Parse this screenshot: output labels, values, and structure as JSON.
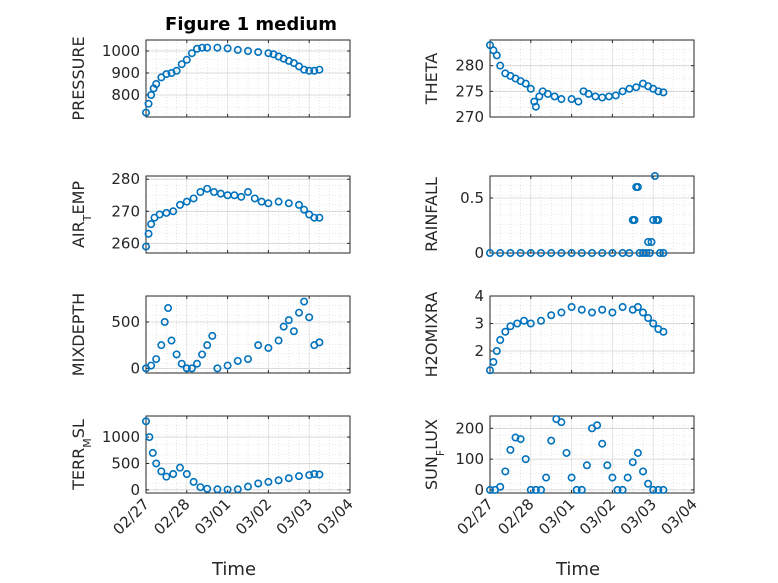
{
  "figure_title": "Figure 1 medium",
  "x_tick_labels": [
    "02/27",
    "02/28",
    "03/01",
    "03/02",
    "03/03",
    "03/04"
  ],
  "x_label": "Time",
  "marker_color": "#0072BD",
  "chart_data": [
    {
      "type": "scatter",
      "ylabel": "PRESSURE",
      "ylim": [
        700,
        1050
      ],
      "yticks": [
        800,
        900,
        1000
      ],
      "ytick_labels": [
        "800",
        "900",
        "1000"
      ],
      "x": [
        "02/27 00:00",
        "02/27 01:30",
        "02/27 03:00",
        "02/27 04:30",
        "02/27 06:00",
        "02/27 09:00",
        "02/27 12:00",
        "02/27 15:00",
        "02/27 18:00",
        "02/27 21:00",
        "02/28 00:00",
        "02/28 03:00",
        "02/28 06:00",
        "02/28 09:00",
        "02/28 12:00",
        "02/28 18:00",
        "03/01 00:00",
        "03/01 06:00",
        "03/01 12:00",
        "03/01 18:00",
        "03/02 00:00",
        "03/02 03:00",
        "03/02 06:00",
        "03/02 09:00",
        "03/02 12:00",
        "03/02 15:00",
        "03/02 18:00",
        "03/02 21:00",
        "03/03 00:00",
        "03/03 03:00",
        "03/03 06:00"
      ],
      "y": [
        720,
        760,
        800,
        830,
        850,
        880,
        895,
        900,
        910,
        940,
        960,
        990,
        1010,
        1015,
        1015,
        1015,
        1012,
        1005,
        1000,
        995,
        990,
        985,
        975,
        965,
        955,
        945,
        930,
        915,
        910,
        910,
        915
      ]
    },
    {
      "type": "scatter",
      "ylabel": "THETA",
      "ylim": [
        270,
        285
      ],
      "yticks": [
        270,
        275,
        280
      ],
      "ytick_labels": [
        "270",
        "275",
        "280"
      ],
      "x": [
        "02/27 00:00",
        "02/27 02:00",
        "02/27 04:00",
        "02/27 06:00",
        "02/27 09:00",
        "02/27 12:00",
        "02/27 15:00",
        "02/27 18:00",
        "02/27 21:00",
        "02/28 00:00",
        "02/28 02:00",
        "02/28 03:00",
        "02/28 05:00",
        "02/28 07:00",
        "02/28 10:00",
        "02/28 14:00",
        "02/28 18:00",
        "03/01 00:00",
        "03/01 04:00",
        "03/01 07:00",
        "03/01 10:00",
        "03/01 14:00",
        "03/01 18:00",
        "03/01 22:00",
        "03/02 02:00",
        "03/02 06:00",
        "03/02 10:00",
        "03/02 14:00",
        "03/02 18:00",
        "03/02 21:00",
        "03/03 00:00",
        "03/03 03:00",
        "03/03 06:00"
      ],
      "y": [
        284,
        283,
        282,
        280,
        278.5,
        278,
        277.5,
        277,
        276.5,
        275.5,
        273,
        272,
        274,
        275,
        274.5,
        274,
        273.5,
        273.5,
        273,
        275,
        274.5,
        274,
        273.8,
        274,
        274.2,
        275,
        275.5,
        275.8,
        276.5,
        276,
        275.5,
        275,
        274.8
      ]
    },
    {
      "type": "scatter",
      "ylabel": "AIR_TEMP",
      "ylim": [
        257,
        281
      ],
      "yticks": [
        260,
        270,
        280
      ],
      "ytick_labels": [
        "260",
        "270",
        "280"
      ],
      "x": [
        "02/27 00:00",
        "02/27 01:30",
        "02/27 03:00",
        "02/27 05:00",
        "02/27 08:00",
        "02/27 12:00",
        "02/27 16:00",
        "02/27 20:00",
        "02/28 00:00",
        "02/28 04:00",
        "02/28 08:00",
        "02/28 12:00",
        "02/28 16:00",
        "02/28 20:00",
        "03/01 00:00",
        "03/01 04:00",
        "03/01 08:00",
        "03/01 12:00",
        "03/01 16:00",
        "03/01 20:00",
        "03/02 00:00",
        "03/02 06:00",
        "03/02 12:00",
        "03/02 18:00",
        "03/02 21:00",
        "03/03 00:00",
        "03/03 03:00",
        "03/03 06:00"
      ],
      "y": [
        259,
        263,
        266,
        268,
        269,
        269.5,
        270,
        272,
        273,
        274,
        276,
        277,
        276,
        275.5,
        275,
        275,
        274.5,
        276,
        274,
        273,
        272.5,
        273,
        272.5,
        272,
        270.5,
        269,
        268,
        268
      ]
    },
    {
      "type": "scatter",
      "ylabel": "RAINFALL",
      "ylim": [
        0,
        0.7
      ],
      "yticks": [
        0,
        0.5
      ],
      "ytick_labels": [
        "0",
        "0.5"
      ],
      "x": [
        "02/27 00:00",
        "02/27 06:00",
        "02/27 12:00",
        "02/27 18:00",
        "02/28 00:00",
        "02/28 06:00",
        "02/28 12:00",
        "02/28 18:00",
        "03/01 00:00",
        "03/01 06:00",
        "03/01 12:00",
        "03/01 18:00",
        "03/02 00:00",
        "03/02 06:00",
        "03/02 10:00",
        "03/02 12:00",
        "03/02 13:00",
        "03/02 14:00",
        "03/02 15:00",
        "03/02 16:00",
        "03/02 18:00",
        "03/02 20:00",
        "03/02 21:00",
        "03/02 22:00",
        "03/02 23:00",
        "03/03 00:00",
        "03/03 01:00",
        "03/03 02:00",
        "03/03 03:00",
        "03/03 04:00",
        "03/03 06:00"
      ],
      "y": [
        0,
        0,
        0,
        0,
        0,
        0,
        0,
        0,
        0,
        0,
        0,
        0,
        0,
        0,
        0,
        0.3,
        0.3,
        0.6,
        0.6,
        0,
        0,
        0,
        0.1,
        0,
        0.1,
        0.3,
        0.7,
        0.3,
        0.3,
        0,
        0
      ]
    },
    {
      "type": "scatter",
      "ylabel": "MIXDEPTH",
      "ylim": [
        -50,
        780
      ],
      "yticks": [
        0,
        500
      ],
      "ytick_labels": [
        "0",
        "500"
      ],
      "x": [
        "02/27 00:00",
        "02/27 03:00",
        "02/27 06:00",
        "02/27 09:00",
        "02/27 11:00",
        "02/27 13:00",
        "02/27 15:00",
        "02/27 18:00",
        "02/27 21:00",
        "02/28 00:00",
        "02/28 03:00",
        "02/28 06:00",
        "02/28 09:00",
        "02/28 12:00",
        "02/28 15:00",
        "02/28 18:00",
        "03/01 00:00",
        "03/01 06:00",
        "03/01 12:00",
        "03/01 18:00",
        "03/02 00:00",
        "03/02 06:00",
        "03/02 09:00",
        "03/02 12:00",
        "03/02 15:00",
        "03/02 18:00",
        "03/02 21:00",
        "03/03 00:00",
        "03/03 03:00",
        "03/03 06:00"
      ],
      "y": [
        0,
        30,
        100,
        250,
        500,
        650,
        300,
        150,
        50,
        0,
        0,
        50,
        150,
        250,
        350,
        0,
        30,
        80,
        100,
        250,
        220,
        300,
        450,
        520,
        400,
        600,
        720,
        550,
        250,
        280
      ]
    },
    {
      "type": "scatter",
      "ylabel": "H2OMIXRA",
      "ylim": [
        1.2,
        4.0
      ],
      "yticks": [
        2,
        3,
        4
      ],
      "ytick_labels": [
        "2",
        "3",
        "4"
      ],
      "x": [
        "02/27 00:00",
        "02/27 02:00",
        "02/27 04:00",
        "02/27 06:00",
        "02/27 09:00",
        "02/27 12:00",
        "02/27 16:00",
        "02/27 20:00",
        "02/28 00:00",
        "02/28 06:00",
        "02/28 12:00",
        "02/28 18:00",
        "03/01 00:00",
        "03/01 06:00",
        "03/01 12:00",
        "03/01 18:00",
        "03/02 00:00",
        "03/02 06:00",
        "03/02 12:00",
        "03/02 15:00",
        "03/02 18:00",
        "03/02 21:00",
        "03/03 00:00",
        "03/03 03:00",
        "03/03 06:00"
      ],
      "y": [
        1.3,
        1.6,
        2.0,
        2.4,
        2.7,
        2.9,
        3.0,
        3.1,
        3.0,
        3.1,
        3.3,
        3.4,
        3.6,
        3.5,
        3.4,
        3.5,
        3.4,
        3.6,
        3.5,
        3.6,
        3.4,
        3.2,
        3.0,
        2.8,
        2.7
      ]
    },
    {
      "type": "scatter",
      "ylabel": "TERR_MSL",
      "ylim": [
        -60,
        1400
      ],
      "yticks": [
        0,
        500,
        1000
      ],
      "ytick_labels": [
        "0",
        "500",
        "1000"
      ],
      "x": [
        "02/27 00:00",
        "02/27 02:00",
        "02/27 04:00",
        "02/27 06:00",
        "02/27 09:00",
        "02/27 12:00",
        "02/27 16:00",
        "02/27 20:00",
        "02/28 00:00",
        "02/28 04:00",
        "02/28 08:00",
        "02/28 12:00",
        "02/28 18:00",
        "03/01 00:00",
        "03/01 06:00",
        "03/01 12:00",
        "03/01 18:00",
        "03/02 00:00",
        "03/02 06:00",
        "03/02 12:00",
        "03/02 18:00",
        "03/03 00:00",
        "03/03 03:00",
        "03/03 06:00"
      ],
      "y": [
        1300,
        1000,
        700,
        500,
        350,
        250,
        300,
        420,
        300,
        150,
        50,
        20,
        10,
        5,
        10,
        60,
        120,
        150,
        180,
        220,
        260,
        280,
        300,
        290
      ]
    },
    {
      "type": "scatter",
      "ylabel": "SUN_FLUX",
      "ylim": [
        -10,
        240
      ],
      "yticks": [
        0,
        100,
        200
      ],
      "ytick_labels": [
        "0",
        "100",
        "200"
      ],
      "x": [
        "02/27 00:00",
        "02/27 03:00",
        "02/27 06:00",
        "02/27 09:00",
        "02/27 12:00",
        "02/27 15:00",
        "02/27 18:00",
        "02/27 21:00",
        "02/28 00:00",
        "02/28 03:00",
        "02/28 06:00",
        "02/28 09:00",
        "02/28 12:00",
        "02/28 15:00",
        "02/28 18:00",
        "02/28 21:00",
        "03/01 00:00",
        "03/01 03:00",
        "03/01 06:00",
        "03/01 09:00",
        "03/01 12:00",
        "03/01 15:00",
        "03/01 18:00",
        "03/01 21:00",
        "03/02 00:00",
        "03/02 03:00",
        "03/02 06:00",
        "03/02 09:00",
        "03/02 12:00",
        "03/02 15:00",
        "03/02 18:00",
        "03/02 21:00",
        "03/03 00:00",
        "03/03 03:00",
        "03/03 06:00"
      ],
      "y": [
        0,
        0,
        10,
        60,
        130,
        170,
        165,
        100,
        0,
        0,
        0,
        40,
        160,
        230,
        220,
        120,
        40,
        0,
        0,
        80,
        200,
        210,
        150,
        80,
        40,
        0,
        0,
        40,
        90,
        120,
        60,
        20,
        0,
        0,
        0
      ]
    }
  ]
}
